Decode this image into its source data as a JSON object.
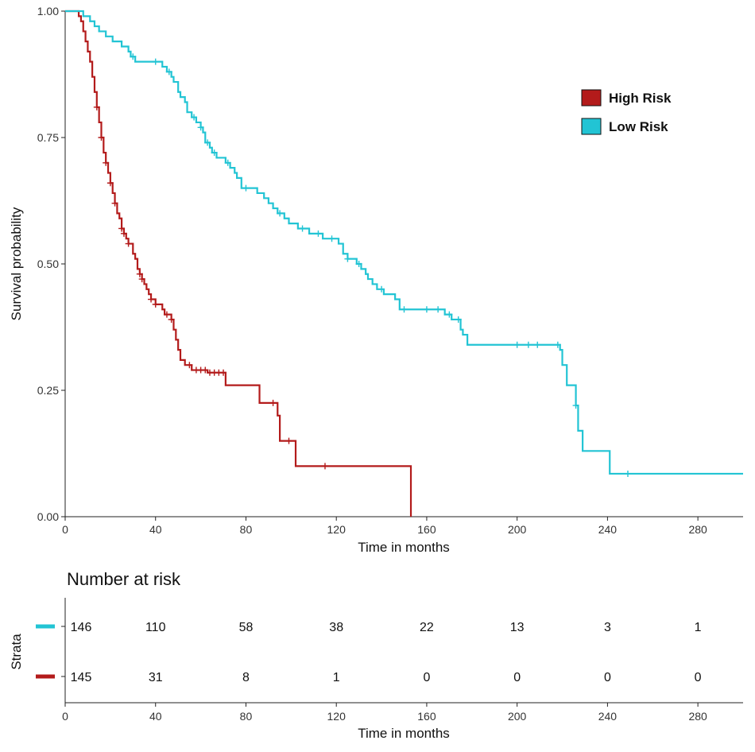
{
  "chart_data": {
    "type": "line",
    "subtype": "kaplan-meier",
    "xlabel": "Time in months",
    "ylabel": "Survival probability",
    "xlim": [
      0,
      300
    ],
    "ylim": [
      0,
      1
    ],
    "xticks": [
      0,
      40,
      80,
      120,
      160,
      200,
      240,
      280
    ],
    "yticks": [
      0,
      0.25,
      0.5,
      0.75,
      1
    ],
    "ytick_labels": [
      "0.00",
      "0.25",
      "0.50",
      "0.75",
      "1.00"
    ],
    "legend_position": "top-right",
    "series": [
      {
        "name": "High Risk",
        "color": "#b31b1b",
        "steps": [
          [
            0,
            1
          ],
          [
            6,
            0.99
          ],
          [
            7,
            0.98
          ],
          [
            8,
            0.96
          ],
          [
            9,
            0.94
          ],
          [
            10,
            0.92
          ],
          [
            11,
            0.9
          ],
          [
            12,
            0.87
          ],
          [
            13,
            0.84
          ],
          [
            14,
            0.81
          ],
          [
            15,
            0.78
          ],
          [
            16,
            0.75
          ],
          [
            17,
            0.72
          ],
          [
            18,
            0.7
          ],
          [
            19,
            0.68
          ],
          [
            20,
            0.66
          ],
          [
            21,
            0.64
          ],
          [
            22,
            0.62
          ],
          [
            23,
            0.6
          ],
          [
            24,
            0.59
          ],
          [
            25,
            0.57
          ],
          [
            26,
            0.56
          ],
          [
            27,
            0.55
          ],
          [
            28,
            0.54
          ],
          [
            30,
            0.52
          ],
          [
            31,
            0.51
          ],
          [
            32,
            0.49
          ],
          [
            33,
            0.48
          ],
          [
            34,
            0.47
          ],
          [
            35,
            0.46
          ],
          [
            36,
            0.45
          ],
          [
            37,
            0.44
          ],
          [
            38,
            0.43
          ],
          [
            40,
            0.42
          ],
          [
            42,
            0.42
          ],
          [
            43,
            0.41
          ],
          [
            44,
            0.4
          ],
          [
            47,
            0.39
          ],
          [
            48,
            0.37
          ],
          [
            49,
            0.35
          ],
          [
            50,
            0.33
          ],
          [
            51,
            0.31
          ],
          [
            53,
            0.3
          ],
          [
            56,
            0.29
          ],
          [
            63,
            0.285
          ],
          [
            71,
            0.26
          ],
          [
            86,
            0.225
          ],
          [
            94,
            0.2
          ],
          [
            95,
            0.15
          ],
          [
            102,
            0.1
          ],
          [
            153,
            0
          ]
        ],
        "censor_times": [
          14,
          16,
          18,
          20,
          22,
          25,
          26,
          28,
          33,
          34,
          38,
          40,
          45,
          47,
          55,
          58,
          60,
          62,
          64,
          66,
          68,
          70,
          92,
          99,
          115
        ],
        "risk_counts": [
          145,
          31,
          8,
          1,
          0,
          0,
          0,
          0
        ]
      },
      {
        "name": "Low Risk",
        "color": "#22c4d4",
        "steps": [
          [
            0,
            1
          ],
          [
            8,
            0.99
          ],
          [
            11,
            0.98
          ],
          [
            13,
            0.97
          ],
          [
            15,
            0.96
          ],
          [
            18,
            0.95
          ],
          [
            21,
            0.94
          ],
          [
            25,
            0.93
          ],
          [
            28,
            0.92
          ],
          [
            29,
            0.91
          ],
          [
            31,
            0.9
          ],
          [
            43,
            0.89
          ],
          [
            45,
            0.88
          ],
          [
            47,
            0.87
          ],
          [
            48,
            0.86
          ],
          [
            50,
            0.84
          ],
          [
            51,
            0.83
          ],
          [
            53,
            0.82
          ],
          [
            54,
            0.8
          ],
          [
            56,
            0.79
          ],
          [
            58,
            0.78
          ],
          [
            60,
            0.77
          ],
          [
            61,
            0.76
          ],
          [
            62,
            0.74
          ],
          [
            64,
            0.73
          ],
          [
            65,
            0.72
          ],
          [
            67,
            0.71
          ],
          [
            71,
            0.7
          ],
          [
            73,
            0.69
          ],
          [
            75,
            0.68
          ],
          [
            76,
            0.67
          ],
          [
            78,
            0.65
          ],
          [
            85,
            0.64
          ],
          [
            88,
            0.63
          ],
          [
            90,
            0.62
          ],
          [
            92,
            0.61
          ],
          [
            94,
            0.6
          ],
          [
            97,
            0.59
          ],
          [
            99,
            0.58
          ],
          [
            103,
            0.57
          ],
          [
            108,
            0.56
          ],
          [
            114,
            0.55
          ],
          [
            121,
            0.54
          ],
          [
            123,
            0.52
          ],
          [
            125,
            0.51
          ],
          [
            129,
            0.5
          ],
          [
            131,
            0.49
          ],
          [
            133,
            0.48
          ],
          [
            134,
            0.47
          ],
          [
            136,
            0.46
          ],
          [
            138,
            0.45
          ],
          [
            141,
            0.44
          ],
          [
            146,
            0.43
          ],
          [
            148,
            0.41
          ],
          [
            168,
            0.4
          ],
          [
            171,
            0.39
          ],
          [
            175,
            0.37
          ],
          [
            176,
            0.36
          ],
          [
            178,
            0.34
          ],
          [
            219,
            0.33
          ],
          [
            220,
            0.3
          ],
          [
            222,
            0.26
          ],
          [
            226,
            0.22
          ],
          [
            227,
            0.17
          ],
          [
            229,
            0.13
          ],
          [
            241,
            0.085
          ],
          [
            300,
            0.085
          ]
        ],
        "censor_times": [
          30,
          40,
          46,
          57,
          60,
          63,
          66,
          72,
          80,
          95,
          105,
          112,
          118,
          125,
          130,
          140,
          150,
          160,
          165,
          170,
          174,
          200,
          205,
          209,
          218,
          226,
          249
        ],
        "risk_counts": [
          146,
          110,
          58,
          38,
          22,
          13,
          3,
          1
        ]
      }
    ],
    "risk_table": {
      "title": "Number at risk",
      "ylabel": "Strata",
      "xlabel": "Time in months",
      "times": [
        0,
        40,
        80,
        120,
        160,
        200,
        240,
        280
      ],
      "row_order": [
        "Low Risk",
        "High Risk"
      ]
    }
  }
}
